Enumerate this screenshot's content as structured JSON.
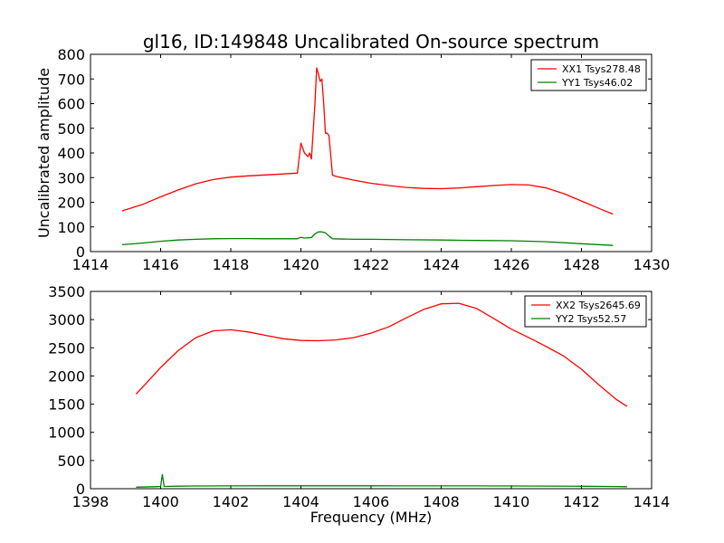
{
  "figure": {
    "title": "gl16, ID:149848 Uncalibrated On-source spectrum"
  },
  "colors": {
    "xx": "#ff0000",
    "yy": "#008000",
    "axes": "#000000",
    "background": "#ffffff"
  },
  "chart_data": [
    {
      "type": "line",
      "title": "gl16, ID:149848 Uncalibrated On-source spectrum",
      "xlabel": "",
      "ylabel": "Uncalibrated amplitude",
      "xlim": [
        1414,
        1430
      ],
      "ylim": [
        0,
        800
      ],
      "xticks": [
        1414,
        1416,
        1418,
        1420,
        1422,
        1424,
        1426,
        1428,
        1430
      ],
      "yticks": [
        0,
        100,
        200,
        300,
        400,
        500,
        600,
        700,
        800
      ],
      "grid": false,
      "legend_position": "top-right",
      "series": [
        {
          "name": "XX1 Tsys278.48",
          "color": "#ff0000",
          "points": [
            [
              1414.9,
              165
            ],
            [
              1415.5,
              192
            ],
            [
              1416.0,
              222
            ],
            [
              1416.5,
              250
            ],
            [
              1417.0,
              275
            ],
            [
              1417.5,
              292
            ],
            [
              1418.0,
              302
            ],
            [
              1418.5,
              307
            ],
            [
              1419.0,
              311
            ],
            [
              1419.5,
              315
            ],
            [
              1419.9,
              318
            ],
            [
              1420.0,
              440
            ],
            [
              1420.1,
              400
            ],
            [
              1420.2,
              385
            ],
            [
              1420.25,
              400
            ],
            [
              1420.3,
              375
            ],
            [
              1420.4,
              600
            ],
            [
              1420.45,
              745
            ],
            [
              1420.5,
              720
            ],
            [
              1420.55,
              690
            ],
            [
              1420.6,
              700
            ],
            [
              1420.65,
              600
            ],
            [
              1420.7,
              480
            ],
            [
              1420.75,
              480
            ],
            [
              1420.8,
              470
            ],
            [
              1420.9,
              310
            ],
            [
              1421.0,
              305
            ],
            [
              1421.5,
              290
            ],
            [
              1422.0,
              277
            ],
            [
              1422.5,
              268
            ],
            [
              1423.0,
              260
            ],
            [
              1423.5,
              256
            ],
            [
              1424.0,
              255
            ],
            [
              1424.5,
              258
            ],
            [
              1425.0,
              263
            ],
            [
              1425.5,
              268
            ],
            [
              1426.0,
              272
            ],
            [
              1426.5,
              270
            ],
            [
              1427.0,
              258
            ],
            [
              1427.5,
              235
            ],
            [
              1428.0,
              205
            ],
            [
              1428.5,
              175
            ],
            [
              1428.9,
              152
            ]
          ]
        },
        {
          "name": "YY1 Tsys46.02",
          "color": "#008000",
          "points": [
            [
              1414.9,
              28
            ],
            [
              1415.5,
              35
            ],
            [
              1416.0,
              42
            ],
            [
              1416.5,
              47
            ],
            [
              1417.0,
              50
            ],
            [
              1417.5,
              52
            ],
            [
              1418.0,
              53
            ],
            [
              1418.5,
              53
            ],
            [
              1419.0,
              52
            ],
            [
              1419.5,
              52
            ],
            [
              1419.9,
              52
            ],
            [
              1420.0,
              58
            ],
            [
              1420.1,
              55
            ],
            [
              1420.3,
              57
            ],
            [
              1420.4,
              72
            ],
            [
              1420.5,
              80
            ],
            [
              1420.6,
              80
            ],
            [
              1420.7,
              76
            ],
            [
              1420.8,
              63
            ],
            [
              1420.9,
              52
            ],
            [
              1421.5,
              50
            ],
            [
              1422.0,
              50
            ],
            [
              1423.0,
              48
            ],
            [
              1424.0,
              47
            ],
            [
              1425.0,
              45
            ],
            [
              1426.0,
              44
            ],
            [
              1427.0,
              40
            ],
            [
              1428.0,
              32
            ],
            [
              1428.9,
              25
            ]
          ]
        }
      ]
    },
    {
      "type": "line",
      "title": "",
      "xlabel": "Frequency (MHz)",
      "ylabel": "",
      "xlim": [
        1398,
        1414
      ],
      "ylim": [
        0,
        3500
      ],
      "xticks": [
        1398,
        1400,
        1402,
        1404,
        1406,
        1408,
        1410,
        1412,
        1414
      ],
      "yticks": [
        0,
        500,
        1000,
        1500,
        2000,
        2500,
        3000,
        3500
      ],
      "grid": false,
      "legend_position": "top-right",
      "series": [
        {
          "name": "XX2 Tsys2645.69",
          "color": "#ff0000",
          "points": [
            [
              1399.3,
              1680
            ],
            [
              1399.6,
              1880
            ],
            [
              1400.0,
              2150
            ],
            [
              1400.5,
              2450
            ],
            [
              1401.0,
              2680
            ],
            [
              1401.5,
              2800
            ],
            [
              1402.0,
              2820
            ],
            [
              1402.5,
              2780
            ],
            [
              1403.0,
              2720
            ],
            [
              1403.5,
              2660
            ],
            [
              1404.0,
              2630
            ],
            [
              1404.5,
              2625
            ],
            [
              1405.0,
              2640
            ],
            [
              1405.5,
              2680
            ],
            [
              1406.0,
              2760
            ],
            [
              1406.5,
              2870
            ],
            [
              1407.0,
              3030
            ],
            [
              1407.5,
              3180
            ],
            [
              1408.0,
              3280
            ],
            [
              1408.5,
              3290
            ],
            [
              1409.0,
              3200
            ],
            [
              1409.5,
              3020
            ],
            [
              1410.0,
              2830
            ],
            [
              1410.5,
              2680
            ],
            [
              1411.0,
              2520
            ],
            [
              1411.5,
              2350
            ],
            [
              1412.0,
              2120
            ],
            [
              1412.5,
              1840
            ],
            [
              1413.0,
              1580
            ],
            [
              1413.3,
              1460
            ]
          ]
        },
        {
          "name": "YY2 Tsys52.57",
          "color": "#008000",
          "points": [
            [
              1399.3,
              28
            ],
            [
              1399.8,
              35
            ],
            [
              1400.0,
              40
            ],
            [
              1400.05,
              250
            ],
            [
              1400.1,
              40
            ],
            [
              1400.5,
              45
            ],
            [
              1401.0,
              48
            ],
            [
              1402.0,
              50
            ],
            [
              1403.0,
              52
            ],
            [
              1404.0,
              52
            ],
            [
              1405.0,
              52
            ],
            [
              1406.0,
              51
            ],
            [
              1407.0,
              50
            ],
            [
              1408.0,
              50
            ],
            [
              1409.0,
              49
            ],
            [
              1410.0,
              48
            ],
            [
              1411.0,
              46
            ],
            [
              1412.0,
              43
            ],
            [
              1413.0,
              38
            ],
            [
              1413.3,
              36
            ]
          ]
        }
      ]
    }
  ]
}
